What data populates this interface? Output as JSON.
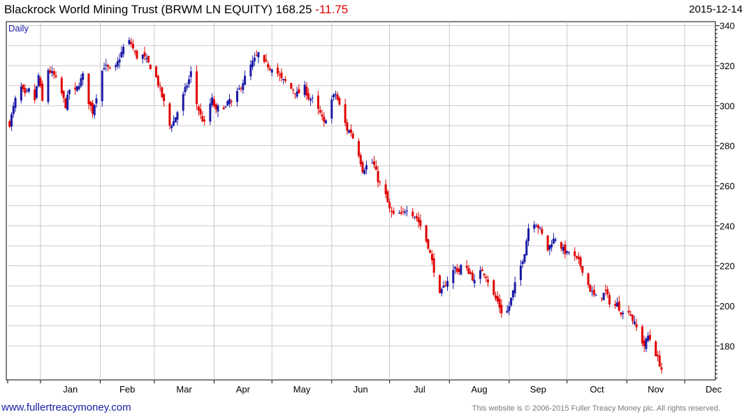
{
  "header": {
    "title": "Blackrock World Mining Trust (BRWM LN EQUITY)",
    "last_price": "168.25",
    "change": "-11.75",
    "date": "2015-12-14"
  },
  "footer": {
    "link": "www.fullertreacymoney.com",
    "copyright": "This website is © 2006-2015 Fuller Treacy Money plc. All rights reserved."
  },
  "colors": {
    "up": "#1a1aa6",
    "down": "#e00000",
    "grid": "#c8c8c8"
  },
  "chart_data": {
    "type": "candlestick",
    "frequency_label": "Daily",
    "grid": true,
    "y_axis_position": "right",
    "ylim": [
      163,
      342
    ],
    "yticks": [
      180,
      200,
      220,
      240,
      260,
      280,
      300,
      320,
      340
    ],
    "x_axis": {
      "start": "2014-12-15",
      "end": "2015-12-14",
      "ticks": [
        {
          "label": "Jan",
          "date": "2015-01-01"
        },
        {
          "label": "Feb",
          "date": "2015-02-01"
        },
        {
          "label": "Mar",
          "date": "2015-03-01"
        },
        {
          "label": "Apr",
          "date": "2015-04-01"
        },
        {
          "label": "May",
          "date": "2015-05-01"
        },
        {
          "label": "Jun",
          "date": "2015-06-01"
        },
        {
          "label": "Jul",
          "date": "2015-07-01"
        },
        {
          "label": "Aug",
          "date": "2015-08-01"
        },
        {
          "label": "Sep",
          "date": "2015-09-01"
        },
        {
          "label": "Oct",
          "date": "2015-10-01"
        },
        {
          "label": "Nov",
          "date": "2015-11-01"
        },
        {
          "label": "Dec",
          "date": "2015-12-01"
        }
      ]
    },
    "closes": [
      [
        1,
        291
      ],
      [
        3,
        299
      ],
      [
        6,
        311
      ],
      [
        9,
        305
      ],
      [
        12,
        309
      ],
      [
        14,
        303
      ],
      [
        16,
        315
      ],
      [
        18,
        302
      ],
      [
        21,
        318
      ],
      [
        24,
        315
      ],
      [
        27,
        309
      ],
      [
        30,
        300
      ],
      [
        33,
        312
      ],
      [
        35,
        307
      ],
      [
        37,
        311
      ],
      [
        39,
        315
      ],
      [
        42,
        302
      ],
      [
        44,
        297
      ],
      [
        46,
        305
      ],
      [
        48,
        315
      ],
      [
        50,
        320
      ],
      [
        53,
        318
      ],
      [
        56,
        319
      ],
      [
        58,
        324
      ],
      [
        60,
        329
      ],
      [
        62,
        333
      ],
      [
        64,
        331
      ],
      [
        66,
        326
      ],
      [
        68,
        323
      ],
      [
        70,
        325
      ],
      [
        73,
        321
      ],
      [
        75,
        318
      ],
      [
        77,
        314
      ],
      [
        79,
        308
      ],
      [
        82,
        298
      ],
      [
        84,
        290
      ],
      [
        86,
        292
      ],
      [
        88,
        297
      ],
      [
        90,
        302
      ],
      [
        92,
        308
      ],
      [
        94,
        313
      ],
      [
        96,
        320
      ],
      [
        98,
        301
      ],
      [
        100,
        295
      ],
      [
        102,
        291
      ],
      [
        104,
        299
      ],
      [
        106,
        303
      ],
      [
        108,
        297
      ],
      [
        110,
        301
      ],
      [
        113,
        299
      ],
      [
        115,
        303
      ],
      [
        117,
        299
      ],
      [
        119,
        306
      ],
      [
        122,
        312
      ],
      [
        124,
        316
      ],
      [
        126,
        320
      ],
      [
        128,
        323
      ],
      [
        130,
        326
      ],
      [
        132,
        320
      ],
      [
        134,
        321
      ],
      [
        136,
        319
      ],
      [
        138,
        320
      ],
      [
        140,
        316
      ],
      [
        142,
        313
      ],
      [
        144,
        312
      ],
      [
        146,
        309
      ],
      [
        148,
        308
      ],
      [
        150,
        306
      ],
      [
        152,
        307
      ],
      [
        154,
        309
      ],
      [
        156,
        304
      ],
      [
        158,
        303
      ],
      [
        160,
        299
      ],
      [
        162,
        296
      ],
      [
        164,
        291
      ],
      [
        166,
        297
      ],
      [
        168,
        303
      ],
      [
        170,
        306
      ],
      [
        172,
        300
      ],
      [
        174,
        294
      ],
      [
        176,
        288
      ],
      [
        178,
        287
      ],
      [
        180,
        281
      ],
      [
        182,
        276
      ],
      [
        184,
        268
      ],
      [
        186,
        270
      ],
      [
        188,
        273
      ],
      [
        190,
        270
      ],
      [
        192,
        263
      ],
      [
        194,
        259
      ],
      [
        196,
        255
      ],
      [
        198,
        248
      ],
      [
        200,
        245
      ],
      [
        202,
        247
      ],
      [
        204,
        245
      ],
      [
        206,
        248
      ],
      [
        208,
        250
      ],
      [
        210,
        246
      ],
      [
        212,
        244
      ],
      [
        214,
        240
      ],
      [
        216,
        235
      ],
      [
        218,
        230
      ],
      [
        220,
        222
      ],
      [
        222,
        214
      ],
      [
        224,
        205
      ],
      [
        226,
        209
      ],
      [
        228,
        213
      ],
      [
        230,
        216
      ],
      [
        232,
        219
      ],
      [
        234,
        217
      ],
      [
        236,
        223
      ],
      [
        238,
        218
      ],
      [
        240,
        216
      ],
      [
        242,
        212
      ],
      [
        244,
        215
      ],
      [
        246,
        218
      ],
      [
        248,
        215
      ],
      [
        250,
        210
      ],
      [
        252,
        205
      ],
      [
        254,
        202
      ],
      [
        256,
        197
      ],
      [
        258,
        195
      ],
      [
        260,
        200
      ],
      [
        262,
        207
      ],
      [
        264,
        214
      ],
      [
        266,
        220
      ],
      [
        268,
        227
      ],
      [
        270,
        239
      ],
      [
        272,
        243
      ],
      [
        274,
        241
      ],
      [
        276,
        238
      ],
      [
        278,
        233
      ],
      [
        280,
        228
      ],
      [
        282,
        232
      ],
      [
        284,
        234
      ],
      [
        286,
        231
      ],
      [
        288,
        228
      ],
      [
        290,
        226
      ],
      [
        292,
        228
      ],
      [
        294,
        224
      ],
      [
        296,
        222
      ],
      [
        298,
        218
      ],
      [
        300,
        213
      ],
      [
        302,
        208
      ],
      [
        304,
        205
      ],
      [
        306,
        203
      ],
      [
        308,
        205
      ],
      [
        310,
        207
      ],
      [
        312,
        202
      ],
      [
        314,
        199
      ],
      [
        316,
        201
      ],
      [
        318,
        197
      ],
      [
        320,
        195
      ],
      [
        322,
        198
      ],
      [
        324,
        193
      ],
      [
        326,
        189
      ],
      [
        328,
        184
      ],
      [
        330,
        180
      ],
      [
        332,
        185
      ],
      [
        334,
        182
      ],
      [
        336,
        176
      ],
      [
        338,
        171
      ],
      [
        339,
        168.25
      ]
    ]
  }
}
